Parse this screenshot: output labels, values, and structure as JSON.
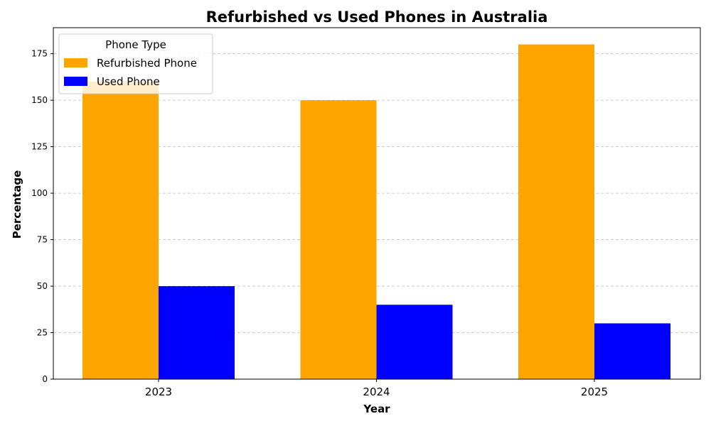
{
  "chart_data": {
    "type": "bar",
    "title": "Refurbished vs Used Phones in Australia",
    "xlabel": "Year",
    "ylabel": "Percentage",
    "categories": [
      "2023",
      "2024",
      "2025"
    ],
    "series": [
      {
        "name": "Refurbished Phone",
        "color": "#FFA500",
        "values": [
          160,
          150,
          180
        ]
      },
      {
        "name": "Used Phone",
        "color": "#0000FF",
        "values": [
          50,
          40,
          30
        ]
      }
    ],
    "ylim": [
      0,
      189
    ],
    "yticks": [
      0,
      25,
      50,
      75,
      100,
      125,
      150,
      175
    ],
    "grid": "y-dashed",
    "legend": {
      "title": "Phone Type",
      "placement": "top-left"
    }
  }
}
